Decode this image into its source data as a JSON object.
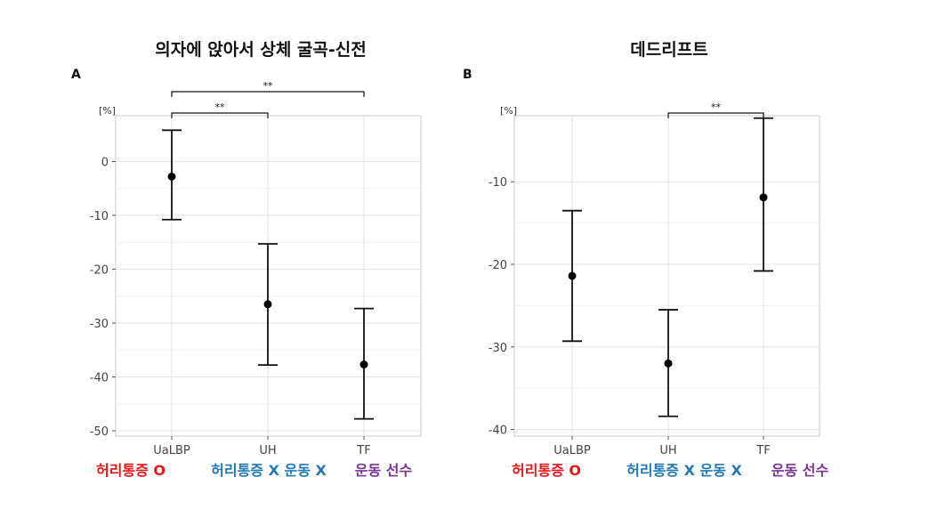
{
  "chart_data": [
    {
      "type": "scatter",
      "panel_label": "A",
      "title": "의자에 앉아서 상체 굴곡-신전",
      "ylabel": "[%]",
      "categories": [
        "UaLBP",
        "UH",
        "TF"
      ],
      "group_labels": [
        {
          "text": "허리통증 O",
          "color": "#e31a1c"
        },
        {
          "text": "허리통증 X 운동 X",
          "color": "#1f78b4"
        },
        {
          "text": "운동 선수",
          "color": "#7b3294"
        }
      ],
      "series": [
        {
          "means": [
            -2.8,
            -26.5,
            -37.7
          ],
          "lower": [
            -10.8,
            -37.8,
            -47.8
          ],
          "upper": [
            5.8,
            -15.3,
            -27.3
          ]
        }
      ],
      "ylim": [
        -51,
        8.5
      ],
      "yticks": [
        0,
        -10,
        -20,
        -30,
        -40,
        -50
      ],
      "tick_labels": [
        "0",
        "-10",
        "-20",
        "-30",
        "-40",
        "-50"
      ],
      "significance": [
        {
          "from": 0,
          "to": 1,
          "label": "**"
        },
        {
          "from": 0,
          "to": 2,
          "label": "**"
        }
      ],
      "grid": true
    },
    {
      "type": "scatter",
      "panel_label": "B",
      "title": "데드리프트",
      "ylabel": "[%]",
      "categories": [
        "UaLBP",
        "UH",
        "TF"
      ],
      "group_labels": [
        {
          "text": "허리통증 O",
          "color": "#e31a1c"
        },
        {
          "text": "허리통증 X 운동 X",
          "color": "#1f78b4"
        },
        {
          "text": "운동 선수",
          "color": "#7b3294"
        }
      ],
      "series": [
        {
          "means": [
            -21.4,
            -32.0,
            -11.9
          ],
          "lower": [
            -29.3,
            -38.4,
            -20.8
          ],
          "upper": [
            -13.5,
            -25.5,
            -2.3
          ]
        }
      ],
      "ylim": [
        -40.8,
        -2.0
      ],
      "yticks": [
        -10,
        -20,
        -30,
        -40
      ],
      "tick_labels": [
        "-10",
        "-20",
        "-30",
        "-40"
      ],
      "significance": [
        {
          "from": 1,
          "to": 2,
          "label": "**"
        }
      ],
      "grid": true
    }
  ]
}
